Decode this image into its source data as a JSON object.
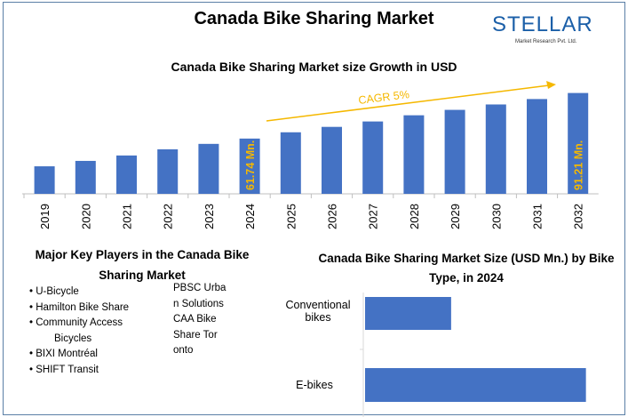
{
  "title": "Canada Bike Sharing Market",
  "logo": {
    "name": "STELLAR",
    "tagline": "Market Research Pvt. Ltd."
  },
  "chart_data": [
    {
      "type": "bar",
      "title": "Canada Bike Sharing Market size Growth in USD",
      "categories": [
        "2019",
        "2020",
        "2021",
        "2022",
        "2023",
        "2024",
        "2025",
        "2026",
        "2027",
        "2028",
        "2029",
        "2030",
        "2031",
        "2032"
      ],
      "values": [
        43.8,
        47.3,
        50.8,
        54.8,
        58.3,
        61.74,
        65.8,
        69.3,
        72.8,
        76.8,
        80.3,
        83.8,
        87.3,
        91.21
      ],
      "ylim": [
        26,
        95
      ],
      "data_labels": {
        "2024": "61.74 Mn.",
        "2032": "91.21 Mn."
      },
      "annotation": "CAGR 5%",
      "colors": {
        "bar": "#4472c4",
        "label": "#f5b800",
        "arrow": "#f5b800"
      }
    },
    {
      "type": "bar",
      "orientation": "horizontal",
      "title": "Canada Bike Sharing Market Size (USD Mn.) by Bike Type, in 2024",
      "categories": [
        "Conventional bikes",
        "E-bikes"
      ],
      "values": [
        17.3,
        44.4
      ],
      "xlim": [
        0,
        50
      ],
      "colors": {
        "bar": "#4472c4"
      }
    }
  ],
  "key_players": {
    "title": "Major Key Players in the Canada Bike Sharing Market",
    "list": [
      "U-Bicycle",
      "Hamilton Bike Share",
      "Community Access Bicycles",
      "BIXI Montréal",
      "SHIFT Transit"
    ],
    "col2": [
      "PBSC Urban Solutions",
      "CAA Bike Share Toronto"
    ]
  }
}
